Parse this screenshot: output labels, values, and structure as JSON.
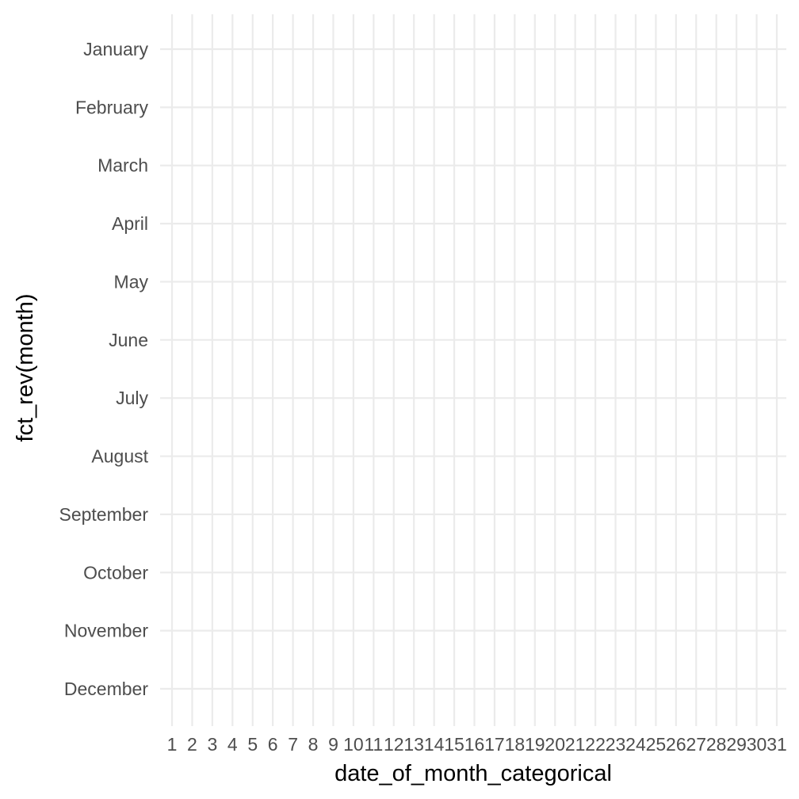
{
  "chart_data": {
    "type": "heatmap",
    "title": "",
    "xlabel": "date_of_month_categorical",
    "ylabel": "fct_rev(month)",
    "x_categories": [
      "1",
      "2",
      "3",
      "4",
      "5",
      "6",
      "7",
      "8",
      "9",
      "10",
      "11",
      "12",
      "13",
      "14",
      "15",
      "16",
      "17",
      "18",
      "19",
      "20",
      "21",
      "22",
      "23",
      "24",
      "25",
      "26",
      "27",
      "28",
      "29",
      "30",
      "31"
    ],
    "y_categories": [
      "January",
      "February",
      "March",
      "April",
      "May",
      "June",
      "July",
      "August",
      "September",
      "October",
      "November",
      "December"
    ],
    "grid": true,
    "legend": "none",
    "values": [],
    "colors": {
      "background": "#ffffff",
      "grid": "#ebebeb",
      "tick_text": "#4d4d4d",
      "title_text": "#000000"
    }
  }
}
